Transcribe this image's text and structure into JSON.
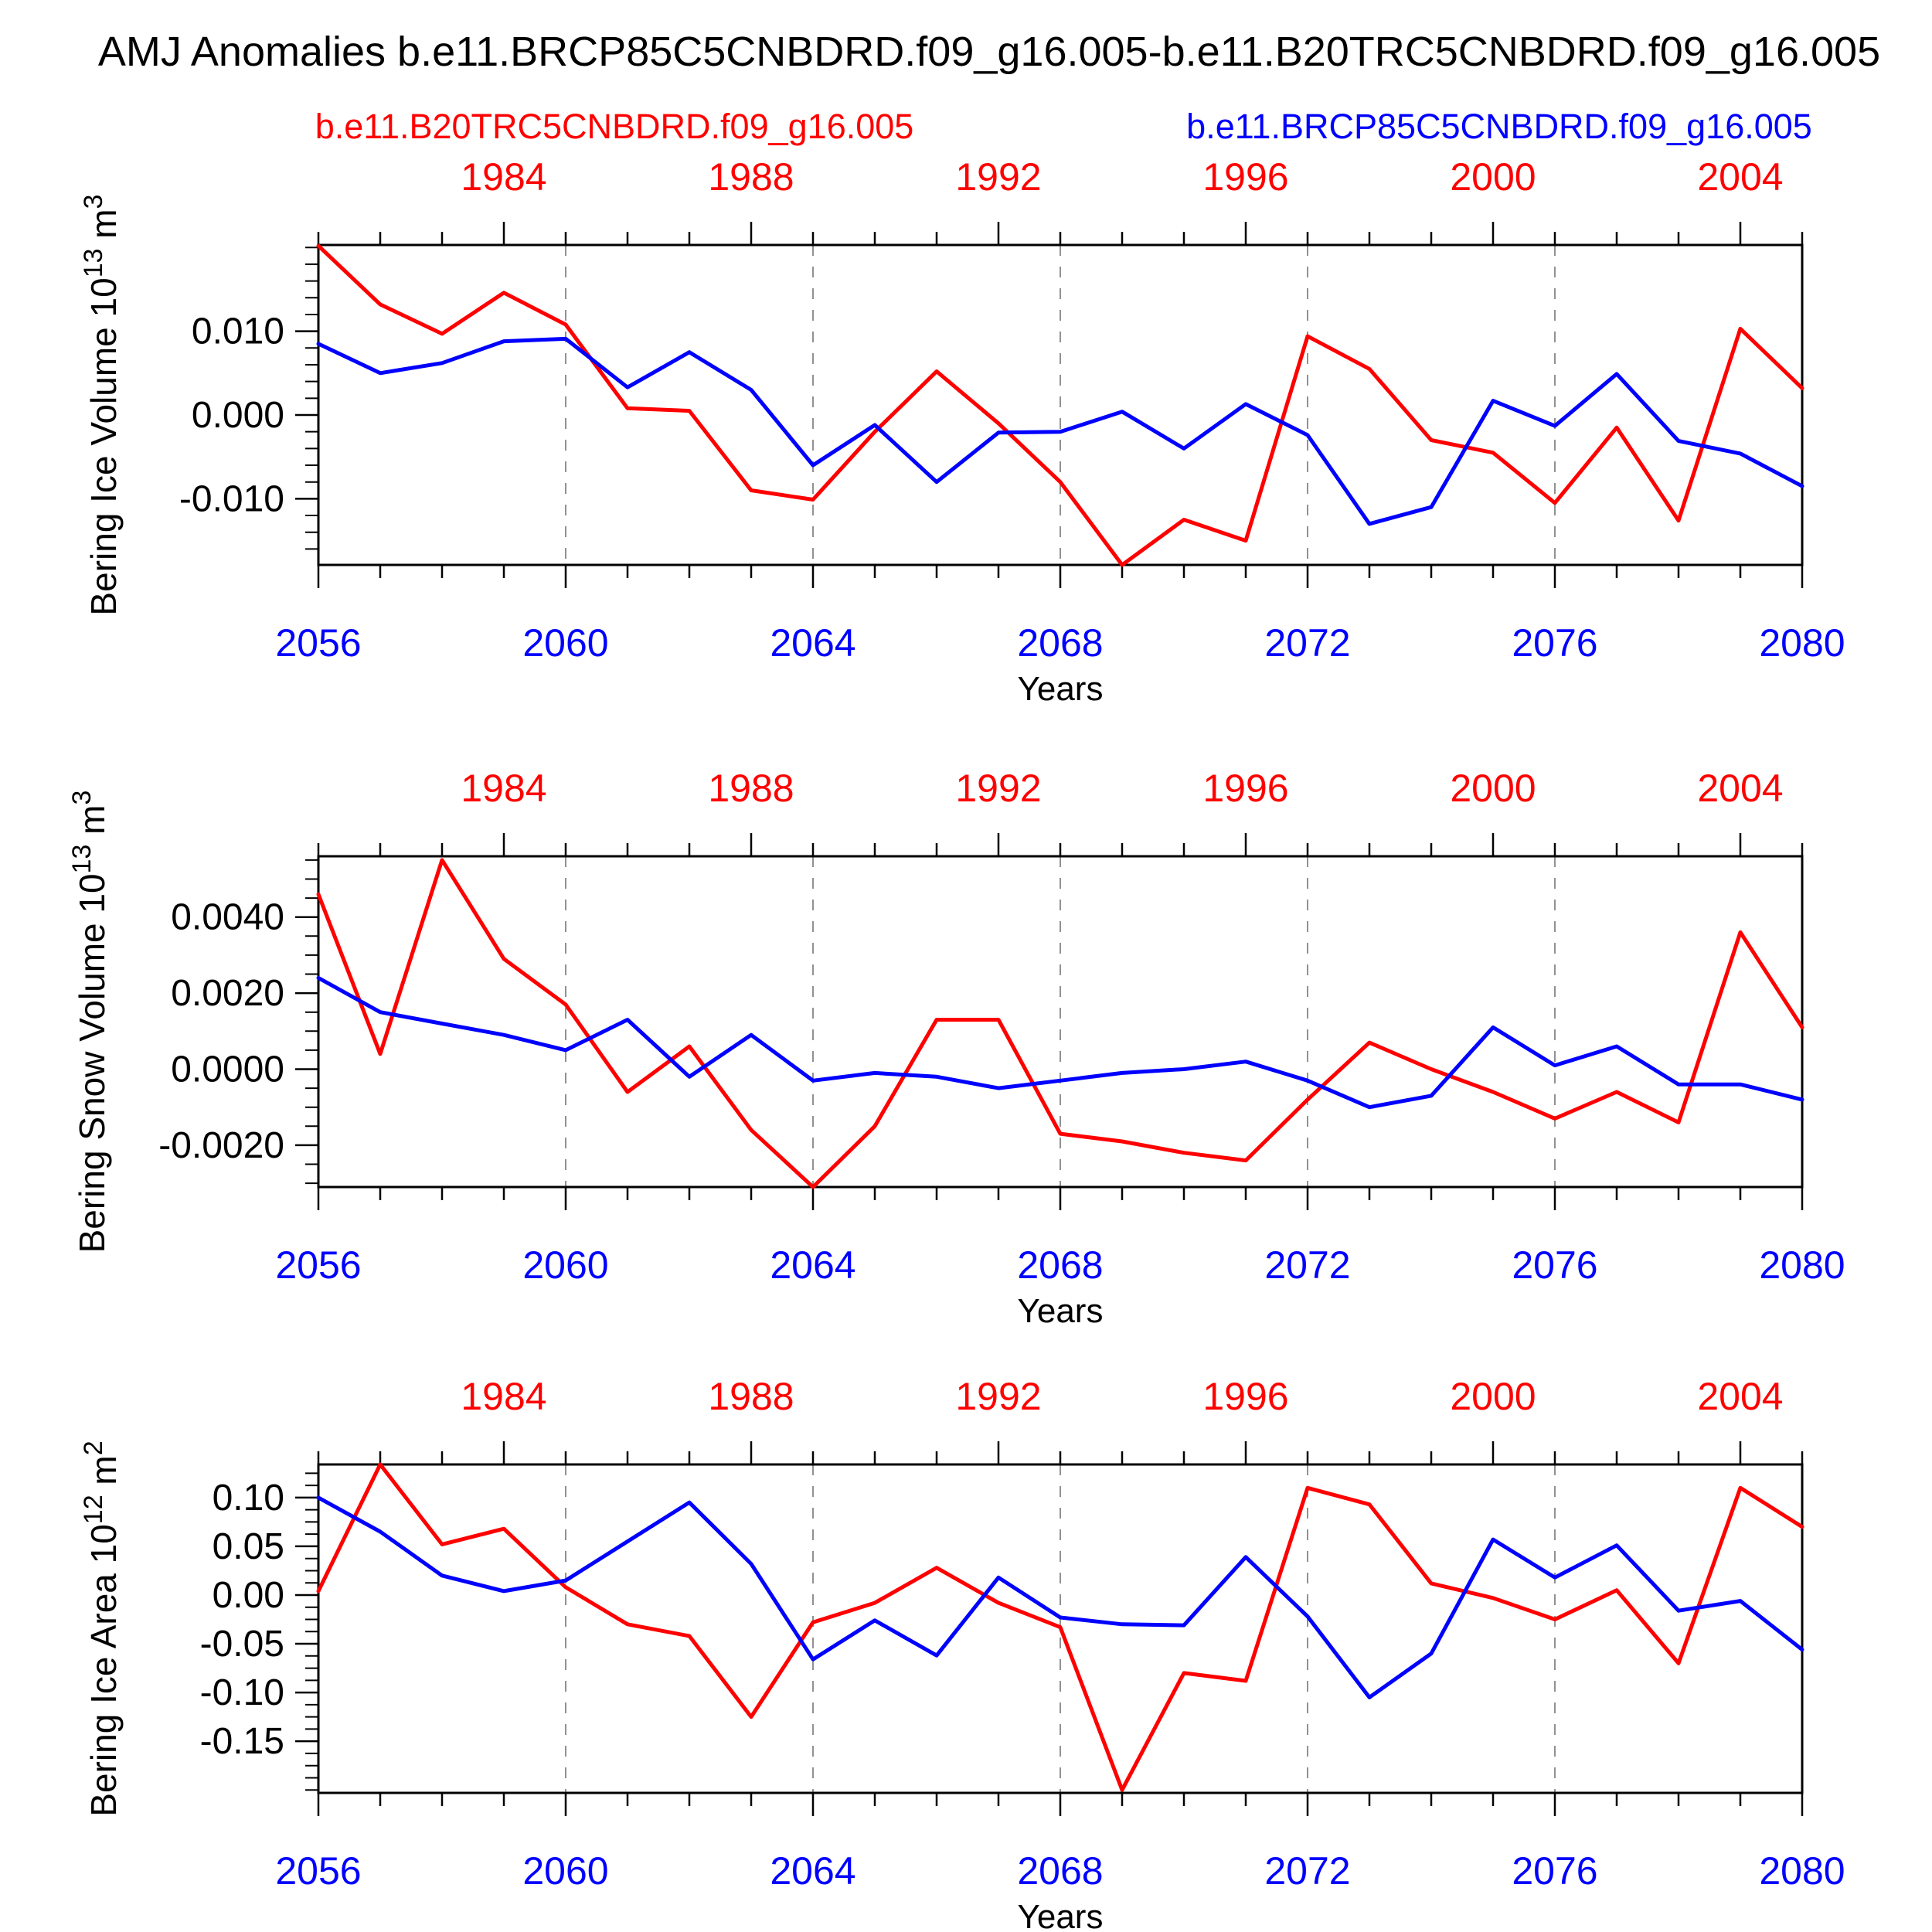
{
  "title": "AMJ Anomalies b.e11.BRCP85C5CNBDRD.f09_g16.005-b.e11.B20TRC5CNBDRD.f09_g16.005",
  "legend": {
    "red": "b.e11.B20TRC5CNBDRD.f09_g16.005",
    "blue": "b.e11.BRCP85C5CNBDRD.f09_g16.005"
  },
  "colors": {
    "red_series": "#ff0000",
    "blue_series": "#0000ff",
    "red_axis_labels": "#ff0000",
    "blue_axis_labels": "#0000ff",
    "frame": "#000000",
    "grid_dashed": "#919191"
  },
  "axes_shared": {
    "x_bottom_label": "Years",
    "x_bottom_ticks": [
      2056,
      2060,
      2064,
      2068,
      2072,
      2076,
      2080
    ],
    "x_top_ticks": [
      1984,
      1988,
      1992,
      1996,
      2000,
      2004
    ],
    "x_bottom_range": [
      2056,
      2080
    ],
    "x_top_range": [
      1981,
      2005
    ],
    "grid_years": [
      2060,
      2064,
      2068,
      2072,
      2076
    ]
  },
  "chart_data": [
    {
      "type": "line",
      "ylabel": "Bering Ice Volume 10^13 m^3",
      "ylabel_markup": "Bering Ice Volume 10|13| m|3|",
      "ylim": [
        -0.0179,
        0.0203
      ],
      "yticks": [
        {
          "v": 0.01,
          "label": "0.010"
        },
        {
          "v": 0.0,
          "label": "0.000"
        },
        {
          "v": -0.01,
          "label": "-0.010"
        }
      ],
      "y_minor_step": 0.002,
      "grid": "vertical-dashed",
      "legend_position": "top",
      "series": [
        {
          "name": "b.e11.B20TRC5CNBDRD.f09_g16.005",
          "color": "#ff0000",
          "x_start_year": 1981,
          "values": [
            0.0202,
            0.0132,
            0.0097,
            0.0146,
            0.0108,
            0.0008,
            0.0005,
            -0.009,
            -0.0101,
            -0.002,
            0.0052,
            -0.001,
            -0.008,
            -0.0179,
            -0.0125,
            -0.015,
            0.0094,
            0.0055,
            -0.003,
            -0.0045,
            -0.0105,
            -0.0015,
            -0.0126,
            0.0103,
            0.0032
          ]
        },
        {
          "name": "b.e11.BRCP85C5CNBDRD.f09_g16.005",
          "color": "#0000ff",
          "x_start_year": 2056,
          "values": [
            0.0085,
            0.005,
            0.0062,
            0.0088,
            0.0091,
            0.0033,
            0.0075,
            0.003,
            -0.006,
            -0.0012,
            -0.008,
            -0.0021,
            -0.002,
            0.0004,
            -0.004,
            0.0013,
            -0.0024,
            -0.013,
            -0.011,
            0.0017,
            -0.0013,
            0.0049,
            -0.0031,
            -0.0046,
            -0.0085
          ]
        }
      ]
    },
    {
      "type": "line",
      "ylabel": "Bering Snow Volume 10^13 m^3",
      "ylabel_markup": "Bering Snow Volume 10|13| m|3|",
      "ylim": [
        -0.0031,
        0.0056
      ],
      "yticks": [
        {
          "v": 0.004,
          "label": "0.0040"
        },
        {
          "v": 0.002,
          "label": "0.0020"
        },
        {
          "v": 0.0,
          "label": "0.0000"
        },
        {
          "v": -0.002,
          "label": "-0.0020"
        }
      ],
      "y_minor_step": 0.0005,
      "grid": "vertical-dashed",
      "legend_position": "none",
      "series": [
        {
          "name": "b.e11.B20TRC5CNBDRD.f09_g16.005",
          "color": "#ff0000",
          "x_start_year": 1981,
          "values": [
            0.0046,
            0.0004,
            0.0055,
            0.0029,
            0.0017,
            -0.0006,
            0.0006,
            -0.0016,
            -0.0031,
            -0.0015,
            0.0013,
            0.0013,
            -0.0017,
            -0.0019,
            -0.0022,
            -0.0024,
            -0.0008,
            0.0007,
            0.0,
            -0.0006,
            -0.0013,
            -0.0006,
            -0.0014,
            0.0036,
            0.0011
          ]
        },
        {
          "name": "b.e11.BRCP85C5CNBDRD.f09_g16.005",
          "color": "#0000ff",
          "x_start_year": 2056,
          "values": [
            0.0024,
            0.0015,
            0.0012,
            0.0009,
            0.0005,
            0.0013,
            -0.0002,
            0.0009,
            -0.0003,
            -0.0001,
            -0.0002,
            -0.0005,
            -0.0003,
            -0.0001,
            0.0,
            0.0002,
            -0.0003,
            -0.001,
            -0.0007,
            0.0011,
            0.0001,
            0.0006,
            -0.0004,
            -0.0004,
            -0.0008
          ]
        }
      ]
    },
    {
      "type": "line",
      "ylabel": "Bering Ice Area 10^12 m^2",
      "ylabel_markup": "Bering Ice Area 10|12| m|2|",
      "ylim": [
        -0.203,
        0.134
      ],
      "yticks": [
        {
          "v": 0.1,
          "label": "0.10"
        },
        {
          "v": 0.05,
          "label": "0.05"
        },
        {
          "v": 0.0,
          "label": "0.00"
        },
        {
          "v": -0.05,
          "label": "-0.05"
        },
        {
          "v": -0.1,
          "label": "-0.10"
        },
        {
          "v": -0.15,
          "label": "-0.15"
        }
      ],
      "y_minor_step": 0.0125,
      "grid": "vertical-dashed",
      "legend_position": "none",
      "series": [
        {
          "name": "b.e11.B20TRC5CNBDRD.f09_g16.005",
          "color": "#ff0000",
          "x_start_year": 1981,
          "values": [
            0.004,
            0.134,
            0.052,
            0.068,
            0.008,
            -0.03,
            -0.042,
            -0.125,
            -0.028,
            -0.008,
            0.028,
            -0.008,
            -0.033,
            -0.2,
            -0.08,
            -0.088,
            0.11,
            0.093,
            0.012,
            -0.003,
            -0.025,
            0.005,
            -0.07,
            0.11,
            0.07
          ]
        },
        {
          "name": "b.e11.BRCP85C5CNBDRD.f09_g16.005",
          "color": "#0000ff",
          "x_start_year": 2056,
          "values": [
            0.1,
            0.065,
            0.02,
            0.004,
            0.015,
            0.055,
            0.095,
            0.032,
            -0.066,
            -0.026,
            -0.062,
            0.018,
            -0.023,
            -0.03,
            -0.031,
            0.039,
            -0.022,
            -0.105,
            -0.06,
            0.057,
            0.018,
            0.051,
            -0.016,
            -0.006,
            -0.056
          ]
        }
      ]
    }
  ]
}
